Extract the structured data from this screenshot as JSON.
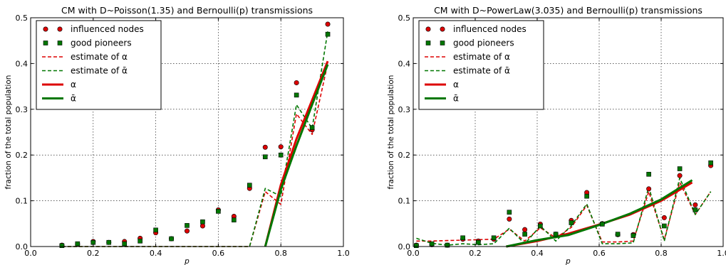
{
  "chart_data": [
    {
      "type": "line",
      "title": "CM with D~Poisson(1.35) and Bernoulli(p) transmissions",
      "xlabel": "p",
      "ylabel": "fraction of the total population",
      "xlim": [
        0.0,
        1.0
      ],
      "ylim": [
        0.0,
        0.5
      ],
      "xticks": [
        "0.0",
        "0.2",
        "0.4",
        "0.6",
        "0.8",
        "1.0"
      ],
      "yticks": [
        "0.0",
        "0.1",
        "0.2",
        "0.3",
        "0.4",
        "0.5"
      ],
      "grid": true,
      "legend_position": "top-left",
      "series": [
        {
          "name": "influenced nodes",
          "style": "marker-circle",
          "color": "#dd0000",
          "x": [
            0.1,
            0.15,
            0.2,
            0.25,
            0.3,
            0.35,
            0.4,
            0.45,
            0.5,
            0.55,
            0.6,
            0.65,
            0.7,
            0.75,
            0.8,
            0.85,
            0.9,
            0.95
          ],
          "y": [
            0.003,
            0.005,
            0.011,
            0.009,
            0.011,
            0.018,
            0.03,
            0.017,
            0.034,
            0.045,
            0.08,
            0.066,
            0.127,
            0.217,
            0.218,
            0.358,
            0.255,
            0.486
          ]
        },
        {
          "name": "good pioneers",
          "style": "marker-square",
          "color": "#007700",
          "x": [
            0.1,
            0.15,
            0.2,
            0.25,
            0.3,
            0.35,
            0.4,
            0.45,
            0.5,
            0.55,
            0.6,
            0.65,
            0.7,
            0.75,
            0.8,
            0.85,
            0.9,
            0.95
          ],
          "y": [
            0.002,
            0.006,
            0.009,
            0.009,
            0.006,
            0.012,
            0.036,
            0.017,
            0.046,
            0.054,
            0.077,
            0.058,
            0.134,
            0.196,
            0.2,
            0.331,
            0.26,
            0.464
          ]
        },
        {
          "name": "estimate of α",
          "style": "dashed",
          "color": "#dd0000",
          "x": [
            0.1,
            0.15,
            0.2,
            0.25,
            0.3,
            0.35,
            0.4,
            0.45,
            0.5,
            0.55,
            0.6,
            0.65,
            0.7,
            0.75,
            0.8,
            0.85,
            0.9,
            0.95
          ],
          "y": [
            0,
            0,
            0,
            0,
            0,
            0,
            0,
            0,
            0,
            0,
            0,
            0,
            0,
            0.12,
            0.092,
            0.29,
            0.245,
            0.4
          ]
        },
        {
          "name": "estimate of ᾱ",
          "style": "dashed",
          "color": "#007700",
          "x": [
            0.1,
            0.15,
            0.2,
            0.25,
            0.3,
            0.35,
            0.4,
            0.45,
            0.5,
            0.55,
            0.6,
            0.65,
            0.7,
            0.75,
            0.8,
            0.85,
            0.9,
            0.95
          ],
          "y": [
            0,
            0,
            0,
            0,
            0,
            0,
            0,
            0,
            0,
            0,
            0,
            0,
            0,
            0.127,
            0.11,
            0.31,
            0.258,
            0.47
          ]
        },
        {
          "name": "α",
          "style": "solid",
          "color": "#dd0000",
          "x": [
            0.75,
            0.8,
            0.85,
            0.9,
            0.95
          ],
          "y": [
            0,
            0.135,
            0.235,
            0.32,
            0.405
          ]
        },
        {
          "name": "ᾱ",
          "style": "solid",
          "color": "#007700",
          "x": [
            0.75,
            0.8,
            0.85,
            0.9,
            0.95
          ],
          "y": [
            0,
            0.125,
            0.22,
            0.31,
            0.398
          ]
        }
      ]
    },
    {
      "type": "line",
      "title": "CM with D~PowerLaw(3.035) and Bernoulli(p) transmissions",
      "xlabel": "p",
      "ylabel": "fraction of the total population",
      "xlim": [
        0.0,
        1.0
      ],
      "ylim": [
        0.0,
        0.5
      ],
      "xticks": [
        "0.0",
        "0.2",
        "0.4",
        "0.6",
        "0.8",
        "1.0"
      ],
      "yticks": [
        "0.0",
        "0.1",
        "0.2",
        "0.3",
        "0.4",
        "0.5"
      ],
      "grid": true,
      "legend_position": "top-left",
      "series": [
        {
          "name": "influenced nodes",
          "style": "marker-circle",
          "color": "#dd0000",
          "x": [
            0.01,
            0.06,
            0.11,
            0.16,
            0.21,
            0.26,
            0.31,
            0.36,
            0.41,
            0.46,
            0.51,
            0.56,
            0.61,
            0.66,
            0.71,
            0.76,
            0.81,
            0.86,
            0.91,
            0.96
          ],
          "y": [
            0.003,
            0.004,
            0.003,
            0.016,
            0.012,
            0.016,
            0.06,
            0.037,
            0.049,
            0.027,
            0.057,
            0.118,
            0.05,
            0.026,
            0.026,
            0.126,
            0.063,
            0.155,
            0.091,
            0.177
          ]
        },
        {
          "name": "good pioneers",
          "style": "marker-square",
          "color": "#007700",
          "x": [
            0.01,
            0.06,
            0.11,
            0.16,
            0.21,
            0.26,
            0.31,
            0.36,
            0.41,
            0.46,
            0.51,
            0.56,
            0.61,
            0.66,
            0.71,
            0.76,
            0.81,
            0.86,
            0.91,
            0.96
          ],
          "y": [
            0.002,
            0.006,
            0.003,
            0.019,
            0.009,
            0.019,
            0.075,
            0.027,
            0.045,
            0.027,
            0.052,
            0.11,
            0.049,
            0.027,
            0.024,
            0.158,
            0.045,
            0.17,
            0.08,
            0.183
          ]
        },
        {
          "name": "estimate of α",
          "style": "dashed",
          "color": "#dd0000",
          "x": [
            0.01,
            0.06,
            0.11,
            0.16,
            0.21,
            0.26,
            0.31,
            0.36,
            0.41,
            0.46,
            0.51,
            0.56,
            0.61,
            0.66,
            0.71,
            0.76,
            0.81,
            0.86,
            0.91,
            0.96
          ],
          "y": [
            0.012,
            0.012,
            0.013,
            0.014,
            0.015,
            0.016,
            0.038,
            0.012,
            0.041,
            0.019,
            0.042,
            0.09,
            0.01,
            0.01,
            0.012,
            0.12,
            0.015,
            0.14,
            0.07,
            0.12
          ]
        },
        {
          "name": "estimate of ᾱ",
          "style": "dashed",
          "color": "#007700",
          "x": [
            0.01,
            0.06,
            0.11,
            0.16,
            0.21,
            0.26,
            0.31,
            0.36,
            0.41,
            0.46,
            0.51,
            0.56,
            0.61,
            0.66,
            0.71,
            0.76,
            0.81,
            0.86,
            0.91,
            0.96
          ],
          "y": [
            0.018,
            0.007,
            0.003,
            0.006,
            0.004,
            0.006,
            0.04,
            0.006,
            0.045,
            0.012,
            0.046,
            0.093,
            0.006,
            0.006,
            0.008,
            0.13,
            0.012,
            0.15,
            0.07,
            0.12
          ]
        },
        {
          "name": "α",
          "style": "solid",
          "color": "#dd0000",
          "x": [
            0.3,
            0.4,
            0.5,
            0.6,
            0.7,
            0.8,
            0.9
          ],
          "y": [
            0,
            0.012,
            0.028,
            0.048,
            0.07,
            0.1,
            0.14
          ]
        },
        {
          "name": "ᾱ",
          "style": "solid",
          "color": "#007700",
          "x": [
            0.3,
            0.4,
            0.5,
            0.6,
            0.7,
            0.8,
            0.9
          ],
          "y": [
            0,
            0.014,
            0.025,
            0.047,
            0.072,
            0.103,
            0.145
          ]
        }
      ]
    }
  ]
}
